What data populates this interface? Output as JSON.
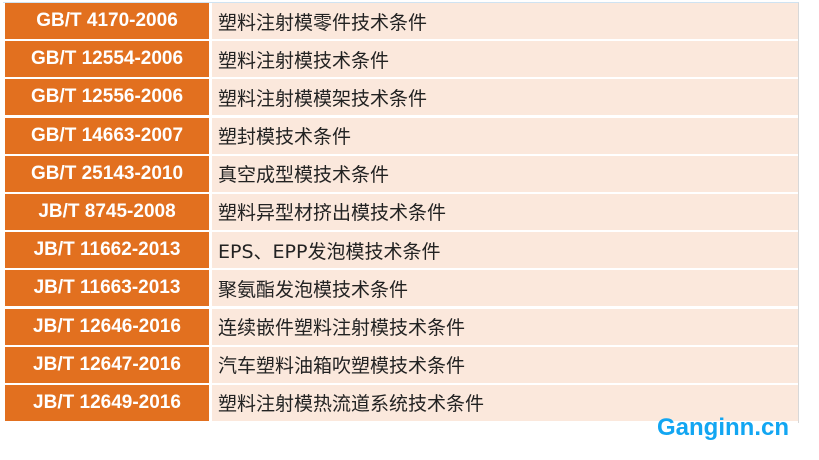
{
  "rows": [
    {
      "code": "GB/T 4170-2006",
      "title": "塑料注射模零件技术条件"
    },
    {
      "code": "GB/T 12554-2006",
      "title": "塑料注射模技术条件"
    },
    {
      "code": "GB/T 12556-2006",
      "title": "塑料注射模模架技术条件"
    },
    {
      "code": "GB/T 14663-2007",
      "title": "塑封模技术条件"
    },
    {
      "code": "GB/T 25143-2010",
      "title": "真空成型模技术条件"
    },
    {
      "code": "JB/T 8745-2008",
      "title": "塑料异型材挤出模技术条件"
    },
    {
      "code": "JB/T 11662-2013",
      "title": "EPS、EPP发泡模技术条件"
    },
    {
      "code": "JB/T 11663-2013",
      "title": "聚氨酯发泡模技术条件"
    },
    {
      "code": "JB/T 12646-2016",
      "title": "连续嵌件塑料注射模技术条件"
    },
    {
      "code": "JB/T 12647-2016",
      "title": "汽车塑料油箱吹塑模技术条件"
    },
    {
      "code": "JB/T 12649-2016",
      "title": "塑料注射模热流道系统技术条件"
    }
  ],
  "watermark": "Ganginn.cn",
  "colors": {
    "code_bg": "#e2701f",
    "title_bg": "#fbe8dc",
    "watermark": "#12a6f2"
  }
}
